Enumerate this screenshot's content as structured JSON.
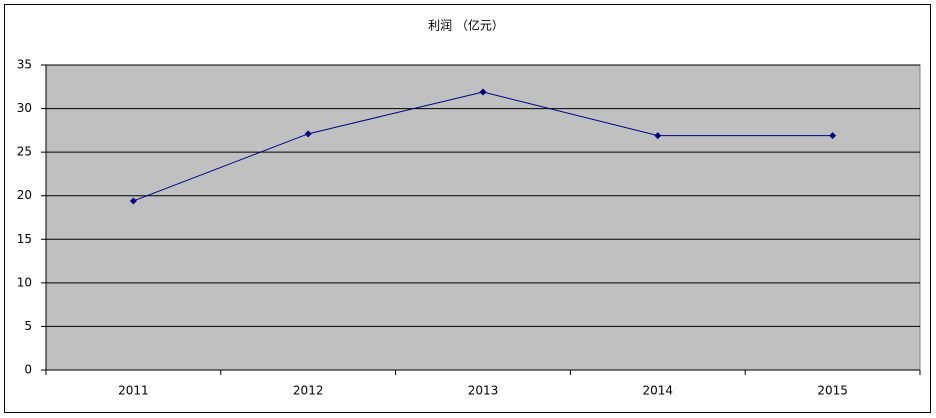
{
  "chart_data": {
    "type": "line",
    "title": "利润 （亿元）",
    "categories": [
      "2011",
      "2012",
      "2013",
      "2014",
      "2015"
    ],
    "values": [
      19.4,
      27.1,
      31.9,
      26.9,
      26.9
    ],
    "color": "#000080",
    "plot_background": "#c0c0c0",
    "ylim": [
      0,
      35
    ],
    "yticks": [
      0,
      5,
      10,
      15,
      20,
      25,
      30,
      35
    ],
    "grid": true
  }
}
